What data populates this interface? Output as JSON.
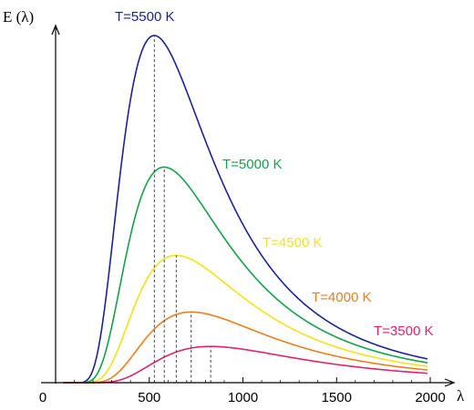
{
  "chart_data": {
    "type": "line",
    "xlabel": "λ",
    "ylabel": "E (λ)",
    "xlim": [
      0,
      2000
    ],
    "ylim": [
      0,
      1
    ],
    "x_ticks": [
      0,
      500,
      1000,
      1500,
      2000
    ],
    "x_tick_labels": [
      "0",
      "500",
      "1000",
      "1500",
      "2000"
    ],
    "grid": false,
    "y_tick_labels_shown": false,
    "curve_model": "planck",
    "series": [
      {
        "name": "T=5500 K",
        "temperature": 5500,
        "color": "#1c2396",
        "peak_x": 527,
        "peak_y": 1.0
      },
      {
        "name": "T=5000 K",
        "temperature": 5000,
        "color": "#14a14a",
        "peak_x": 580,
        "peak_y": 0.621
      },
      {
        "name": "T=4500 K",
        "temperature": 4500,
        "color": "#f2e318",
        "peak_x": 644,
        "peak_y": 0.367
      },
      {
        "name": "T=4000 K",
        "temperature": 4000,
        "color": "#ee7d1e",
        "peak_x": 724,
        "peak_y": 0.204
      },
      {
        "name": "T=3500 K",
        "temperature": 3500,
        "color": "#e2226c",
        "peak_x": 828,
        "peak_y": 0.104
      }
    ]
  }
}
